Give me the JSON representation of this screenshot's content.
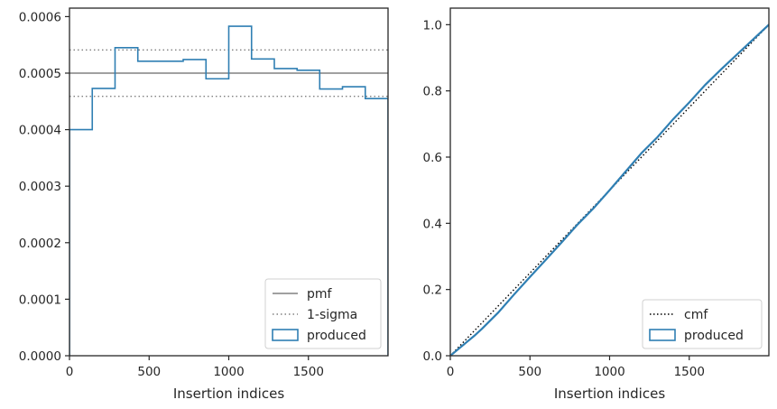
{
  "chart_data": [
    {
      "type": "step",
      "xlabel": "Insertion indices",
      "ylabel": "",
      "xlim": [
        0,
        2000
      ],
      "ylim": [
        0,
        0.000615
      ],
      "x_ticks": [
        0,
        500,
        1000,
        1500
      ],
      "x_tick_labels": [
        "0",
        "500",
        "1000",
        "1500"
      ],
      "y_ticks": [
        0,
        0.0001,
        0.0002,
        0.0003,
        0.0004,
        0.0005,
        0.0006
      ],
      "y_tick_labels": [
        "0.0000",
        "0.0001",
        "0.0002",
        "0.0003",
        "0.0004",
        "0.0005",
        "0.0006"
      ],
      "reference_lines": [
        {
          "name": "pmf",
          "y": 0.0005,
          "style": "solid",
          "color": "#808080"
        },
        {
          "name": "1-sigma",
          "y": 0.000541,
          "style": "dotted",
          "color": "#808080"
        },
        {
          "name": "1-sigma",
          "y": 0.000459,
          "style": "dotted",
          "color": "#808080"
        }
      ],
      "series": [
        {
          "name": "produced",
          "color": "#2f7fb3",
          "bin_edges": [
            0,
            143,
            286,
            429,
            571,
            714,
            857,
            1000,
            1143,
            1286,
            1429,
            1571,
            1714,
            1857,
            2000
          ],
          "values": [
            0.0004,
            0.000473,
            0.000545,
            0.000521,
            0.000521,
            0.000524,
            0.00049,
            0.000583,
            0.000525,
            0.000508,
            0.000505,
            0.000472,
            0.000476,
            0.000455
          ]
        }
      ],
      "legend": {
        "position": "lower-right",
        "entries": [
          "pmf",
          "1-sigma",
          "produced"
        ]
      }
    },
    {
      "type": "line",
      "xlabel": "Insertion indices",
      "ylabel": "",
      "xlim": [
        0,
        2000
      ],
      "ylim": [
        0,
        1.05
      ],
      "x_ticks": [
        0,
        500,
        1000,
        1500
      ],
      "x_tick_labels": [
        "0",
        "500",
        "1000",
        "1500"
      ],
      "y_ticks": [
        0,
        0.2,
        0.4,
        0.6,
        0.8,
        1.0
      ],
      "y_tick_labels": [
        "0.0",
        "0.2",
        "0.4",
        "0.6",
        "0.8",
        "1.0"
      ],
      "series": [
        {
          "name": "cmf",
          "style": "dotted",
          "color": "#000000",
          "x": [
            0,
            2000
          ],
          "y": [
            0,
            1
          ]
        },
        {
          "name": "produced",
          "color": "#2f7fb3",
          "x": [
            0,
            50,
            100,
            150,
            200,
            300,
            400,
            500,
            600,
            700,
            800,
            900,
            1000,
            1100,
            1200,
            1300,
            1400,
            1500,
            1600,
            1700,
            1800,
            1900,
            2000
          ],
          "y": [
            0,
            0.02,
            0.04,
            0.06,
            0.082,
            0.13,
            0.185,
            0.238,
            0.29,
            0.343,
            0.397,
            0.446,
            0.5,
            0.556,
            0.612,
            0.66,
            0.715,
            0.765,
            0.818,
            0.865,
            0.91,
            0.955,
            1.0
          ]
        }
      ],
      "legend": {
        "position": "lower-right",
        "entries": [
          "cmf",
          "produced"
        ]
      }
    }
  ]
}
